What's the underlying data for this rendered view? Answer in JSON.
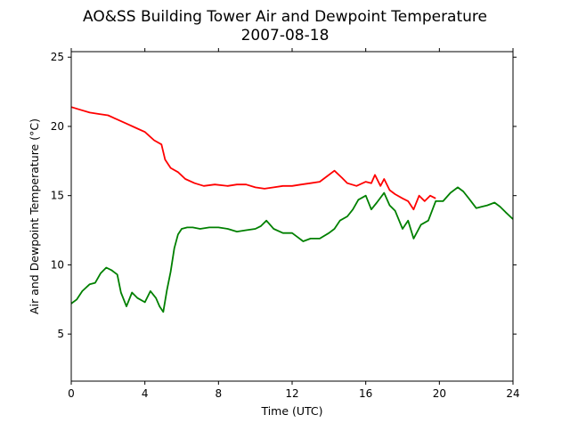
{
  "chart_data": {
    "type": "line",
    "title": [
      "AO&SS Building Tower Air and Dewpoint Temperature",
      "2007-08-18"
    ],
    "xlabel": "Time (UTC)",
    "ylabel": "Air and Dewpoint Temperature (°C)",
    "xlim": [
      0,
      24
    ],
    "ylim": [
      1.6,
      25.4
    ],
    "xticks": [
      0,
      4,
      8,
      12,
      16,
      20,
      24
    ],
    "xtick_labels": [
      "0",
      "4",
      "8",
      "12",
      "16",
      "20",
      "24"
    ],
    "yticks": [
      5,
      10,
      15,
      20,
      25
    ],
    "ytick_labels": [
      "5",
      "10",
      "15",
      "20",
      "25"
    ],
    "grid": false,
    "series": [
      {
        "color": "#ff0000",
        "x": [
          0,
          0.5,
          1,
          1.5,
          2,
          2.5,
          3,
          3.5,
          4,
          4.5,
          4.9,
          5.1,
          5.4,
          5.8,
          6.2,
          6.7,
          7.2,
          7.8,
          8.5,
          9,
          9.5,
          10,
          10.5,
          11,
          11.5,
          12,
          12.5,
          13,
          13.5,
          14,
          14.3,
          14.7,
          15,
          15.5,
          16,
          16.3,
          16.5,
          16.8,
          17,
          17.3,
          17.6,
          18,
          18.3,
          18.6,
          18.9,
          19.2,
          19.5,
          19.8
        ],
        "values": [
          21.4,
          21.2,
          21.0,
          20.9,
          20.8,
          20.5,
          20.2,
          19.9,
          19.6,
          19.0,
          18.7,
          17.6,
          17.0,
          16.7,
          16.2,
          15.9,
          15.7,
          15.8,
          15.7,
          15.8,
          15.8,
          15.6,
          15.5,
          15.6,
          15.7,
          15.7,
          15.8,
          15.9,
          16.0,
          16.5,
          16.8,
          16.3,
          15.9,
          15.7,
          16.0,
          15.9,
          16.5,
          15.7,
          16.2,
          15.4,
          15.1,
          14.8,
          14.6,
          14.0,
          15.0,
          14.6,
          15.0,
          14.8
        ]
      },
      {
        "color": "#008000",
        "x": [
          0,
          0.3,
          0.6,
          1,
          1.3,
          1.6,
          1.9,
          2.2,
          2.5,
          2.7,
          3,
          3.3,
          3.6,
          4,
          4.3,
          4.6,
          4.8,
          5,
          5.2,
          5.4,
          5.6,
          5.8,
          6,
          6.3,
          6.6,
          7,
          7.5,
          8,
          8.5,
          9,
          9.5,
          10,
          10.3,
          10.6,
          11,
          11.5,
          12,
          12.3,
          12.6,
          13,
          13.5,
          14,
          14.3,
          14.6,
          15,
          15.3,
          15.6,
          16,
          16.3,
          16.6,
          17,
          17.3,
          17.6,
          18,
          18.3,
          18.6,
          19,
          19.4,
          19.8,
          20.2,
          20.6,
          21,
          21.3,
          21.6,
          22,
          22.3,
          22.6,
          23,
          23.3,
          23.6,
          24
        ],
        "values": [
          7.2,
          7.5,
          8.1,
          8.6,
          8.7,
          9.4,
          9.8,
          9.6,
          9.3,
          8.0,
          7.0,
          8.0,
          7.6,
          7.3,
          8.1,
          7.6,
          7.0,
          6.6,
          8.2,
          9.5,
          11.2,
          12.2,
          12.6,
          12.7,
          12.7,
          12.6,
          12.7,
          12.7,
          12.6,
          12.4,
          12.5,
          12.6,
          12.8,
          13.2,
          12.6,
          12.3,
          12.3,
          12.0,
          11.7,
          11.9,
          11.9,
          12.3,
          12.6,
          13.2,
          13.5,
          14.0,
          14.7,
          15.0,
          14.0,
          14.5,
          15.2,
          14.3,
          13.9,
          12.6,
          13.2,
          11.9,
          12.9,
          13.2,
          14.6,
          14.6,
          15.2,
          15.6,
          15.3,
          14.8,
          14.1,
          14.2,
          14.3,
          14.5,
          14.2,
          13.8,
          13.3
        ]
      }
    ]
  }
}
